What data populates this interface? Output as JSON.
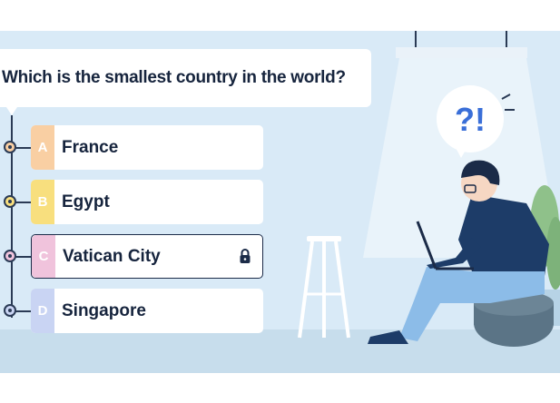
{
  "question": {
    "text": "Which is the smallest country in the world?"
  },
  "options": [
    {
      "letter": "A",
      "label": "France",
      "color": "#f9cfa3",
      "dot": "#f9cfa3"
    },
    {
      "letter": "B",
      "label": "Egypt",
      "color": "#f8df7e",
      "dot": "#f8df7e"
    },
    {
      "letter": "C",
      "label": "Vatican City",
      "color": "#f0c3dc",
      "dot": "#f0c3dc",
      "selected": true,
      "icon": "lock-icon"
    },
    {
      "letter": "D",
      "label": "Singapore",
      "color": "#c9d4f3",
      "dot": "#c9d4f3"
    }
  ],
  "illustration": {
    "thought_bubble": "?!"
  },
  "colors": {
    "background": "#d9eaf7",
    "text": "#16243d",
    "accent": "#1b2b48"
  }
}
